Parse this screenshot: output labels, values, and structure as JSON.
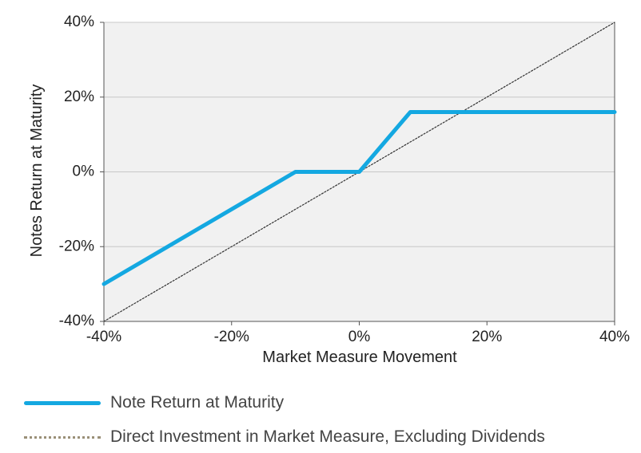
{
  "chart_data": {
    "type": "line",
    "xlabel": "Market Measure Movement",
    "ylabel": "Notes Return at Maturity",
    "xlim": [
      -40,
      40
    ],
    "ylim": [
      -40,
      40
    ],
    "x_ticks": [
      -40,
      -20,
      0,
      20,
      40
    ],
    "y_ticks": [
      -40,
      -20,
      0,
      20,
      40
    ],
    "x_tick_labels": [
      "-40%",
      "-20%",
      "0%",
      "20%",
      "40%"
    ],
    "y_tick_labels": [
      "-40%",
      "-20%",
      "0%",
      "20%",
      "40%"
    ],
    "grid": "horizontal",
    "legend_placement": "bottom",
    "series": [
      {
        "name": "Note Return at Maturity",
        "color": "#14a8e1",
        "style": "solid",
        "x": [
          -40,
          -10,
          0,
          8,
          40
        ],
        "y": [
          -30,
          0,
          0,
          16,
          16
        ]
      },
      {
        "name": "Direct Investment in Market Measure, Excluding Dividends",
        "color": "#333333",
        "style": "dotted",
        "x": [
          -40,
          40
        ],
        "y": [
          -40,
          40
        ]
      }
    ]
  },
  "legend": {
    "items": [
      {
        "label": "Note Return at Maturity"
      },
      {
        "label": "Direct Investment in Market Measure, Excluding Dividends"
      }
    ]
  }
}
